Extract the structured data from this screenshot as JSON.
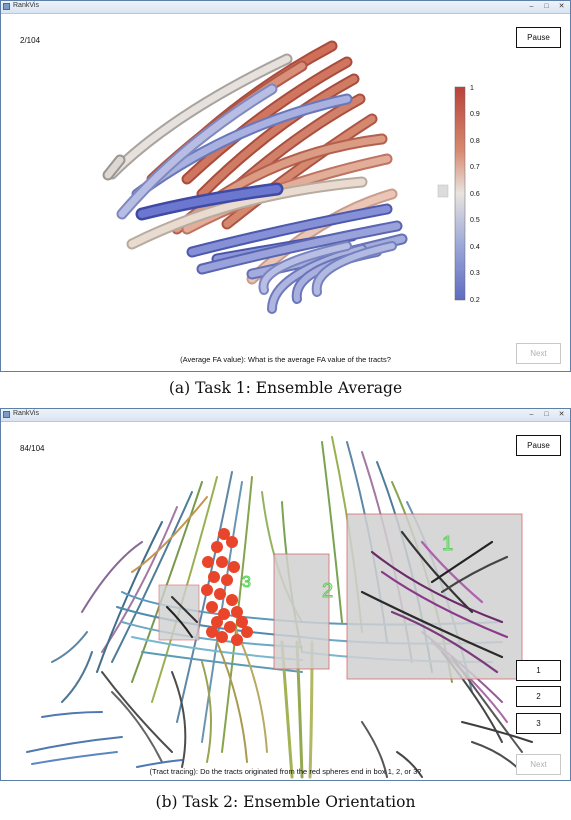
{
  "panel_a": {
    "window_title": "RankVis",
    "progress": "2/104",
    "pause_label": "Pause",
    "next_label": "Next",
    "question": "(Average FA value): What is the average FA value of the tracts?",
    "caption": "(a) Task 1: Ensemble Average",
    "colorbar": {
      "ticks": [
        "1",
        "0.9",
        "0.8",
        "0.7",
        "0.6",
        "0.5",
        "0.4",
        "0.3",
        "0.2"
      ],
      "colors": {
        "high": "#b8433a",
        "mid": "#e8e3df",
        "low": "#5f6bbf"
      }
    }
  },
  "panel_b": {
    "window_title": "RankVis",
    "progress": "84/104",
    "pause_label": "Pause",
    "answer_options": [
      "1",
      "2",
      "3"
    ],
    "next_label": "Next",
    "question": "(Tract tracing): Do the tracts originated from the red spheres end in box 1, 2, or 3?",
    "box_labels": [
      "1",
      "2",
      "3"
    ],
    "caption": "(b) Task 2: Ensemble Orientation"
  },
  "window_controls": {
    "minimize": "–",
    "maximize": "□",
    "close": "✕"
  }
}
